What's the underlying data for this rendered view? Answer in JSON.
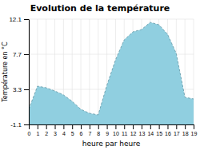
{
  "chart_data": {
    "type": "area",
    "title": "Evolution de la température",
    "xlabel": "heure par heure",
    "ylabel": "Température en °C",
    "x": [
      0,
      1,
      2,
      3,
      4,
      5,
      6,
      7,
      8,
      9,
      10,
      11,
      12,
      13,
      14,
      15,
      16,
      17,
      18,
      19
    ],
    "values": [
      0.8,
      3.7,
      3.5,
      3.1,
      2.6,
      1.8,
      0.8,
      0.3,
      0.1,
      3.8,
      7.0,
      9.5,
      10.5,
      10.8,
      11.7,
      11.4,
      10.2,
      7.8,
      2.3,
      2.1
    ],
    "color": "#90cfe0",
    "line_style": "dashed",
    "xlim": [
      0,
      19
    ],
    "ylim": [
      -1.1,
      12.1
    ],
    "xticks": [
      0,
      1,
      2,
      3,
      4,
      5,
      6,
      7,
      8,
      9,
      10,
      11,
      12,
      13,
      14,
      15,
      16,
      17,
      18,
      19
    ],
    "yticks": [
      -1.1,
      3.3,
      7.7,
      12.1
    ],
    "grid": true
  }
}
